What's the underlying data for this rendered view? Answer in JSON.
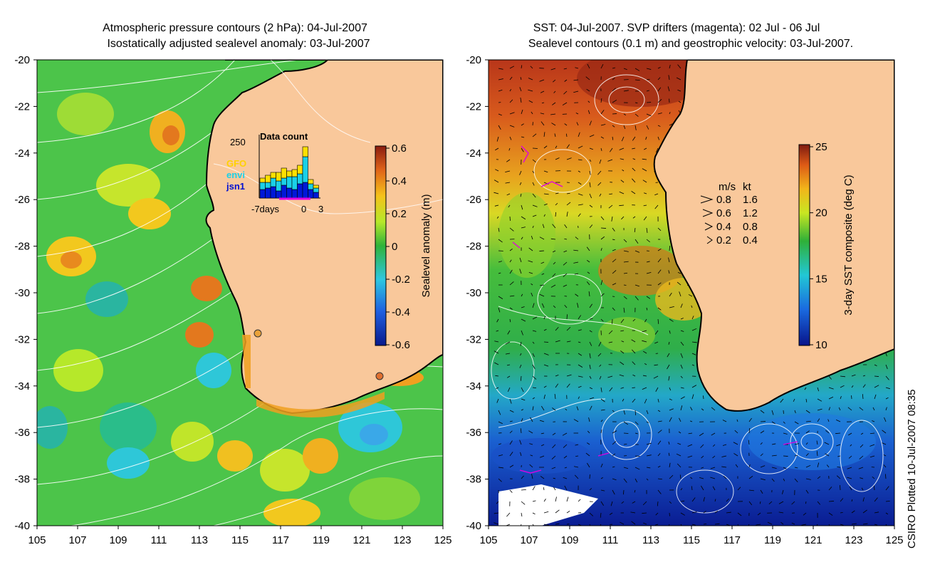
{
  "left_panel": {
    "title_line1": "Atmospheric pressure contours (2 hPa): 04-Jul-2007",
    "title_line2": "Isostatically adjusted sealevel anomaly: 03-Jul-2007",
    "colorbar": {
      "label": "Sealevel anomaly (m)",
      "ticks": [
        "0.6",
        "0.4",
        "0.2",
        "0",
        "-0.2",
        "-0.4",
        "-0.6"
      ]
    },
    "inset": {
      "title": "Data count",
      "ymax_label": "250",
      "x_labels": [
        "-7days",
        "0",
        "3"
      ],
      "legend": [
        "GFO",
        "envi",
        "jsn1"
      ]
    }
  },
  "right_panel": {
    "title_line1": "SST: 04-Jul-2007. SVP drifters (magenta): 02 Jul - 06 Jul",
    "title_line2": "Sealevel contours (0.1 m) and geostrophic velocity: 03-Jul-2007.",
    "colorbar": {
      "label": "3-day SST composite (deg C)",
      "ticks": [
        "25",
        "20",
        "15",
        "10"
      ]
    },
    "velocity_legend": {
      "header_ms": "m/s",
      "header_kt": "kt",
      "rows": [
        {
          "ms": "0.8",
          "kt": "1.6"
        },
        {
          "ms": "0.6",
          "kt": "1.2"
        },
        {
          "ms": "0.4",
          "kt": "0.8"
        },
        {
          "ms": "0.2",
          "kt": "0.4"
        }
      ]
    }
  },
  "axes": {
    "lat_ticks": [
      "-20",
      "-22",
      "-24",
      "-26",
      "-28",
      "-30",
      "-32",
      "-34",
      "-36",
      "-38",
      "-40"
    ],
    "lon_ticks": [
      "105",
      "107",
      "109",
      "111",
      "113",
      "115",
      "117",
      "119",
      "121",
      "123",
      "125"
    ]
  },
  "credit": "CSIRO Plotted 10-Jul-2007 08:35",
  "colors": {
    "land": "#f9c89b",
    "ocean_green": "#46c24a",
    "coast": "#000000",
    "drifter": "#e000e0"
  }
}
